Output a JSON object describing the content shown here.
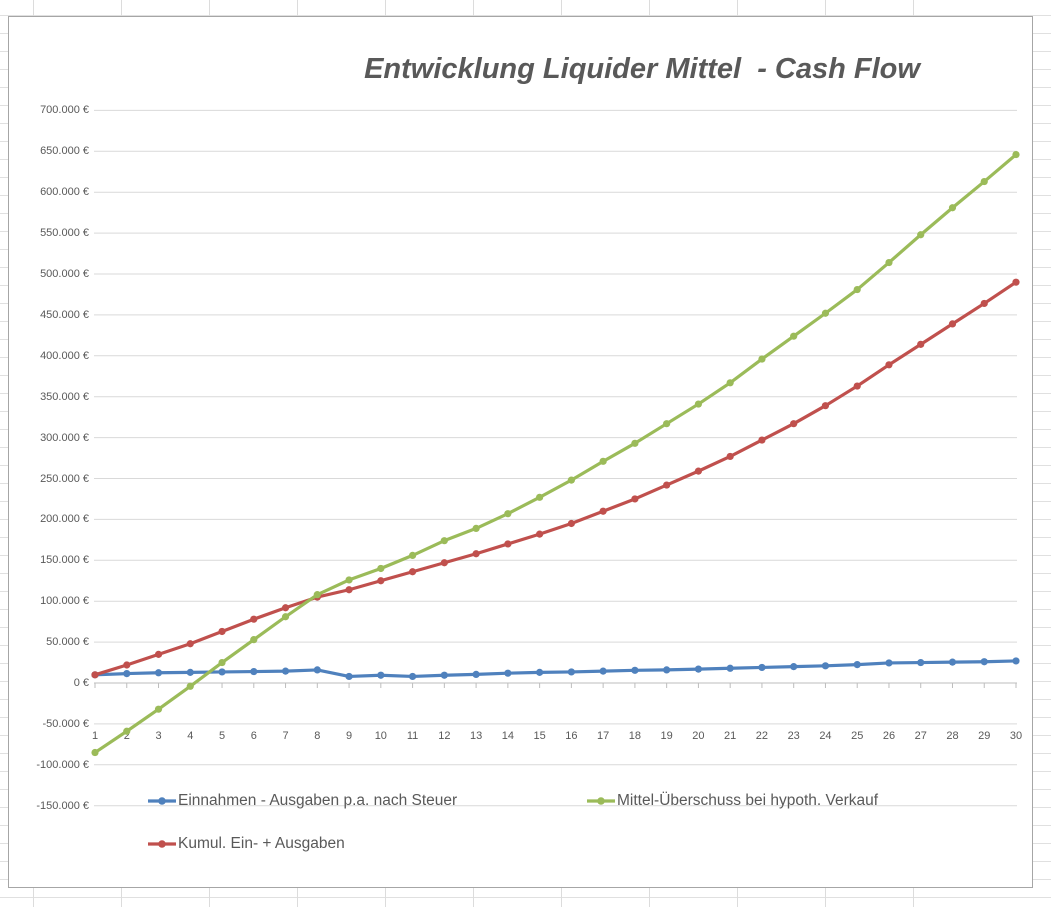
{
  "chart_data": {
    "type": "line",
    "title": "Entwicklung Liquider Mittel  - Cash Flow",
    "x": [
      1,
      2,
      3,
      4,
      5,
      6,
      7,
      8,
      9,
      10,
      11,
      12,
      13,
      14,
      15,
      16,
      17,
      18,
      19,
      20,
      21,
      22,
      23,
      24,
      25,
      26,
      27,
      28,
      29,
      30
    ],
    "series": [
      {
        "name": "Einnahmen - Ausgaben p.a. nach Steuer",
        "color": "#4F81BD",
        "values": [
          10000,
          11500,
          12500,
          13000,
          13500,
          14000,
          14500,
          16000,
          8000,
          9500,
          8000,
          9500,
          10500,
          12000,
          13000,
          13500,
          14500,
          15500,
          16000,
          17000,
          18000,
          19000,
          20000,
          21000,
          22500,
          24500,
          25000,
          25500,
          26000,
          27000
        ]
      },
      {
        "name": "Mittel-Überschuss bei hypoth. Verkauf",
        "color": "#9BBB59",
        "values": [
          -85000,
          -59000,
          -32000,
          -4000,
          25000,
          53000,
          81000,
          108000,
          126000,
          140000,
          156000,
          174000,
          189000,
          207000,
          227000,
          248000,
          271000,
          293000,
          317000,
          341000,
          367000,
          396000,
          424000,
          452000,
          481000,
          514000,
          548000,
          581000,
          613000,
          646000
        ]
      },
      {
        "name": "Kumul. Ein- + Ausgaben",
        "color": "#C0504D",
        "values": [
          10000,
          22000,
          35000,
          48000,
          63000,
          78000,
          92000,
          105000,
          114000,
          125000,
          136000,
          147000,
          158000,
          170000,
          182000,
          195000,
          210000,
          225000,
          242000,
          259000,
          277000,
          297000,
          317000,
          339000,
          363000,
          389000,
          414000,
          439000,
          464000,
          490000
        ]
      }
    ],
    "ylim": [
      -150000,
      700000
    ],
    "ytick_step": 50000,
    "y_tick_labels": [
      "700.000 €",
      "650.000 €",
      "600.000 €",
      "550.000 €",
      "500.000 €",
      "450.000 €",
      "400.000 €",
      "350.000 €",
      "300.000 €",
      "250.000 €",
      "200.000 €",
      "150.000 €",
      "100.000 €",
      "50.000 €",
      "0 €",
      "-50.000 €",
      "-100.000 €",
      "-150.000 €"
    ],
    "grid": true,
    "legend_position": "bottom",
    "colors": {
      "gridline": "#D9D9D9",
      "axis_line": "#BDBDBD",
      "tick_text": "#595959",
      "title_text": "#595959",
      "chart_border": "#A6A6A6",
      "sheet_gridline": "#DCDCDC",
      "chart_background": "#FFFFFF"
    }
  }
}
